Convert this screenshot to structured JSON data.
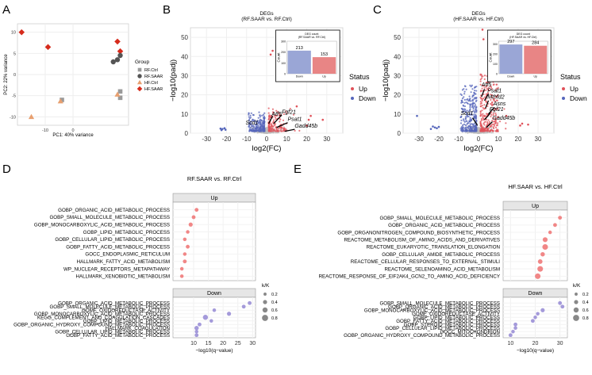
{
  "panels": {
    "A": "A",
    "B": "B",
    "C": "C",
    "D": "D",
    "E": "E"
  },
  "colors": {
    "up_red": "#e0525a",
    "down_blue": "#5566bb",
    "neutral": "#bdbdbd",
    "rf_ctrl": "#9a9a9a",
    "rf_saar": "#555555",
    "hf_ctrl": "#e8a070",
    "hf_saar": "#d62b1c",
    "bar_down": "#9aa6d6",
    "bar_up": "#e88585",
    "dot_up": "#f07a7a",
    "dot_down": "#9a8fd6",
    "strip_bg": "#e6e6e6"
  },
  "chart_data": [
    {
      "id": "A",
      "type": "scatter",
      "title": "",
      "xlabel": "PC1: 40% variance",
      "ylabel": "PC2: 22% variance",
      "xlim": [
        -20,
        20
      ],
      "ylim": [
        -12,
        12
      ],
      "xticks": [
        -10,
        0
      ],
      "yticks": [
        -10,
        -5,
        0,
        5,
        10
      ],
      "legend_title": "Group",
      "legend": [
        {
          "label": "RF.Ctrl",
          "shape": "square",
          "color": "#9a9a9a"
        },
        {
          "label": "RF.SAAR",
          "shape": "circle",
          "color": "#555555"
        },
        {
          "label": "HF.Ctrl",
          "shape": "triangle",
          "color": "#e8a070"
        },
        {
          "label": "HF.SAAR",
          "shape": "diamond",
          "color": "#d62b1c"
        }
      ],
      "points": [
        {
          "group": "HF.SAAR",
          "x": -18.5,
          "y": 10.0
        },
        {
          "group": "HF.SAAR",
          "x": -9.0,
          "y": 6.5
        },
        {
          "group": "HF.SAAR",
          "x": 16.0,
          "y": 7.8
        },
        {
          "group": "HF.SAAR",
          "x": 17.0,
          "y": 5.5
        },
        {
          "group": "RF.SAAR",
          "x": 14.5,
          "y": 3.0
        },
        {
          "group": "RF.SAAR",
          "x": 16.0,
          "y": 3.5
        },
        {
          "group": "RF.SAAR",
          "x": 17.0,
          "y": 4.5
        },
        {
          "group": "RF.Ctrl",
          "x": 17.0,
          "y": -4.0
        },
        {
          "group": "RF.Ctrl",
          "x": 17.0,
          "y": -5.5
        },
        {
          "group": "RF.Ctrl",
          "x": -4.0,
          "y": -6.0
        },
        {
          "group": "HF.Ctrl",
          "x": -4.5,
          "y": -6.3
        },
        {
          "group": "HF.Ctrl",
          "x": 16.0,
          "y": -4.7
        },
        {
          "group": "HF.Ctrl",
          "x": -15.0,
          "y": -10.0
        }
      ]
    },
    {
      "id": "B",
      "type": "scatter",
      "title": "DEGs",
      "subtitle": "(RF.SAAR vs. RF.Ctrl)",
      "xlabel": "log2(FC)",
      "ylabel": "−log10(padj)",
      "xlim": [
        -38,
        38
      ],
      "ylim": [
        0,
        55
      ],
      "xticks": [
        -30,
        -20,
        -10,
        0,
        10,
        20,
        30
      ],
      "yticks": [
        0,
        10,
        20,
        30,
        40,
        50
      ],
      "legend_title": "Status",
      "legend": [
        {
          "label": "Up",
          "color": "#e0525a"
        },
        {
          "label": "Down",
          "color": "#5566bb"
        }
      ],
      "labels": [
        {
          "text": "Scd1",
          "x": -10.5,
          "y": 4.5
        },
        {
          "text": "Atf5",
          "x": 2.5,
          "y": 9.2
        },
        {
          "text": "Fgf21",
          "x": 7.5,
          "y": 10.2
        },
        {
          "text": "Psat1",
          "x": 10.5,
          "y": 6.5
        },
        {
          "text": "Gadd45b",
          "x": 14.0,
          "y": 2.8
        }
      ],
      "arrows": [
        {
          "from": [
            3,
            9
          ],
          "to": [
            1,
            5
          ]
        },
        {
          "from": [
            7.5,
            9.5
          ],
          "to": [
            3.5,
            5
          ]
        },
        {
          "from": [
            10.5,
            5.5
          ],
          "to": [
            5,
            3
          ]
        },
        {
          "from": [
            14,
            2
          ],
          "to": [
            9,
            1
          ]
        }
      ],
      "inset": {
        "title": "DEG count",
        "subtitle": "(RF.SAAR vs. RF.Ctrl)",
        "ylabel": "Count",
        "categories": [
          "Down",
          "Up"
        ],
        "values": [
          213,
          153
        ],
        "ylim": [
          0,
          300
        ]
      }
    },
    {
      "id": "C",
      "type": "scatter",
      "title": "DEGs",
      "subtitle": "(HF.SAAR vs. HF.Ctrl)",
      "xlabel": "log2(FC)",
      "ylabel": "−log10(padj)",
      "xlim": [
        -38,
        38
      ],
      "ylim": [
        0,
        55
      ],
      "xticks": [
        -30,
        -20,
        -10,
        0,
        10,
        20,
        30
      ],
      "yticks": [
        0,
        10,
        20,
        30,
        40,
        50
      ],
      "legend_title": "Status",
      "legend": [
        {
          "label": "Up",
          "color": "#e0525a"
        },
        {
          "label": "Down",
          "color": "#5566bb"
        }
      ],
      "labels": [
        {
          "text": "Atf5",
          "x": 1.5,
          "y": 24.5
        },
        {
          "text": "Psat1",
          "x": 4.5,
          "y": 21.3
        },
        {
          "text": "Mthfd2",
          "x": 4.5,
          "y": 18.0
        },
        {
          "text": "Asns",
          "x": 7.5,
          "y": 14.5
        },
        {
          "text": "Fgf21",
          "x": 5.5,
          "y": 11.5
        },
        {
          "text": "Scd1",
          "x": -9,
          "y": 9.5
        },
        {
          "text": "Gadd45b",
          "x": 7.0,
          "y": 7.0
        }
      ],
      "arrows": [
        {
          "from": [
            3,
            23
          ],
          "to": [
            1.5,
            19
          ]
        },
        {
          "from": [
            5,
            20.5
          ],
          "to": [
            3,
            17
          ]
        },
        {
          "from": [
            5,
            17
          ],
          "to": [
            3.5,
            13
          ]
        },
        {
          "from": [
            8,
            13.5
          ],
          "to": [
            5,
            10
          ]
        },
        {
          "from": [
            6,
            10.5
          ],
          "to": [
            3,
            7
          ]
        },
        {
          "from": [
            -3,
            8
          ],
          "to": [
            -0.5,
            4
          ]
        },
        {
          "from": [
            7,
            6
          ],
          "to": [
            4,
            3
          ]
        }
      ],
      "inset": {
        "title": "DEG count",
        "subtitle": "(HF.SAAR vs. HF.Ctrl)",
        "ylabel": "Count",
        "categories": [
          "Down",
          "Up"
        ],
        "values": [
          297,
          284
        ],
        "ylim": [
          0,
          330
        ]
      }
    },
    {
      "id": "D",
      "type": "scatter",
      "title": "RF.SAAR vs. RF.Ctrl",
      "xlabel": "−log10(q−value)",
      "xlim": [
        3,
        31
      ],
      "xticks": [
        10,
        15,
        20,
        25,
        30
      ],
      "size_legend_title": "k/K",
      "size_legend": [
        "0.2",
        "0.4",
        "0.6",
        "0.8"
      ],
      "up": {
        "strip": "Up",
        "terms": [
          {
            "label": "GOBP_ORGANIC_ACID_METABOLIC_PROCESS",
            "value": 11,
            "size": 0.35
          },
          {
            "label": "GOBP_SMALL_MOLECULE_METABOLIC_PROCESS",
            "value": 10,
            "size": 0.35
          },
          {
            "label": "GOBP_MONOCARBOXYLIC_ACID_METABOLIC_PROCESS",
            "value": 9,
            "size": 0.4
          },
          {
            "label": "GOBP_LIPID_METABOLIC_PROCESS",
            "value": 8,
            "size": 0.3
          },
          {
            "label": "GOBP_CELLULAR_LIPID_METABOLIC_PROCESS",
            "value": 7,
            "size": 0.3
          },
          {
            "label": "GOBP_FATTY_ACID_METABOLIC_PROCESS",
            "value": 8,
            "size": 0.35
          },
          {
            "label": "GOCC_ENDOPLASMIC_RETICULUM",
            "value": 7,
            "size": 0.3
          },
          {
            "label": "HALLMARK_FATTY_ACID_METABOLISM",
            "value": 7,
            "size": 0.35
          },
          {
            "label": "WP_NUCLEAR_RECEPTORS_METAPATHWAY",
            "value": 6,
            "size": 0.3
          },
          {
            "label": "HALLMARK_XENOBIOTIC_METABOLISM",
            "value": 6,
            "size": 0.3
          }
        ]
      },
      "down": {
        "strip": "Down",
        "terms": [
          {
            "label": "GOBP_ORGANIC_ACID_METABOLIC_PROCESS",
            "value": 29,
            "size": 0.35
          },
          {
            "label": "GOBP_SMALL_MOLECULE_METABOLIC_PROCESS",
            "value": 27,
            "size": 0.35
          },
          {
            "label": "GOMF_OXIDOREDUCTASE_ACTIVITY",
            "value": 17,
            "size": 0.3
          },
          {
            "label": "GOBP_MONOCARBOXYLIC_ACID_METABOLIC_PROCESS",
            "value": 22,
            "size": 0.4
          },
          {
            "label": "KEGG_COMPLEMENT_AND_COAGULATION_CASCADES",
            "value": 14,
            "size": 0.6
          },
          {
            "label": "GOBP_LIPID_METABOLIC_PROCESS",
            "value": 16,
            "size": 0.3
          },
          {
            "label": "GOBP_ORGANIC_HYDROXY_COMPOUND_METABOLIC_PROCESS",
            "value": 12,
            "size": 0.35
          },
          {
            "label": "HALLMARK_COAGULATION",
            "value": 11,
            "size": 0.45
          },
          {
            "label": "GOBP_CELLULAR_LIPID_METABOLIC_PROCESS",
            "value": 11,
            "size": 0.3
          },
          {
            "label": "GOBP_FATTY_ACID_METABOLIC_PROCESS",
            "value": 11,
            "size": 0.35
          }
        ]
      }
    },
    {
      "id": "E",
      "type": "scatter",
      "title": "HF.SAAR vs. HF.Ctrl",
      "xlabel": "−log10(q−value)",
      "xlim": [
        7,
        33
      ],
      "xticks": [
        10,
        20,
        30
      ],
      "size_legend_title": "k/K",
      "size_legend": [
        "0.2",
        "0.4",
        "0.6",
        "0.8"
      ],
      "up": {
        "strip": "Up",
        "terms": [
          {
            "label": "GOBP_SMALL_MOLECULE_METABOLIC_PROCESS",
            "value": 30,
            "size": 0.35
          },
          {
            "label": "GOBP_ORGANIC_ACID_METABOLIC_PROCESS",
            "value": 28,
            "size": 0.35
          },
          {
            "label": "GOBP_ORGANONITROGEN_COMPOUND_BIOSYNTHETIC_PROCESS",
            "value": 26,
            "size": 0.3
          },
          {
            "label": "REACTOME_METABOLISM_OF_AMINO_ACIDS_AND_DERIVATIVES",
            "value": 24,
            "size": 0.55
          },
          {
            "label": "REACTOME_EUKARYOTIC_TRANSLATION_ELONGATION",
            "value": 24,
            "size": 0.7
          },
          {
            "label": "GOBP_CELLULAR_AMIDE_METABOLIC_PROCESS",
            "value": 23,
            "size": 0.45
          },
          {
            "label": "REACTOME_CELLULAR_RESPONSES_TO_EXTERNAL_STIMULI",
            "value": 22,
            "size": 0.5
          },
          {
            "label": "REACTOME_SELENOAMINO_ACID_METABOLISM",
            "value": 22,
            "size": 0.7
          },
          {
            "label": "REACTOME_RESPONSE_OF_EIF2AK4_GCN2_TO_AMINO_ACID_DEFICIENCY",
            "value": 21,
            "size": 0.7
          }
        ]
      },
      "down": {
        "strip": "Down",
        "terms": [
          {
            "label": "GOBP_SMALL_MOLECULE_METABOLIC_PROCESS",
            "value": 30,
            "size": 0.35
          },
          {
            "label": "GOBP_ORGANIC_ACID_METABOLIC_PROCESS",
            "value": 31,
            "size": 0.35
          },
          {
            "label": "GOBP_MONOCARBOXYLIC_ACID_METABOLIC_PROCESS",
            "value": 23,
            "size": 0.4
          },
          {
            "label": "GOMF_OXIDOREDUCTASE_ACTIVITY",
            "value": 21,
            "size": 0.3
          },
          {
            "label": "GOBP_LIPID_METABOLIC_PROCESS",
            "value": 20,
            "size": 0.3
          },
          {
            "label": "GOBP_FATTY_ACID_METABOLIC_PROCESS",
            "value": 19,
            "size": 0.35
          },
          {
            "label": "GOBP_STEROID_METABOLIC_PROCESS",
            "value": 12,
            "size": 0.35
          },
          {
            "label": "GOBP_CELLULAR_LIPID_METABOLIC_PROCESS",
            "value": 12,
            "size": 0.3
          },
          {
            "label": "GOCC_MITOCHONDRION",
            "value": 11,
            "size": 0.3
          },
          {
            "label": "GOBP_ORGANIC_HYDROXY_COMPOUND_METABOLIC_PROCESS",
            "value": 10,
            "size": 0.35
          }
        ]
      }
    }
  ]
}
